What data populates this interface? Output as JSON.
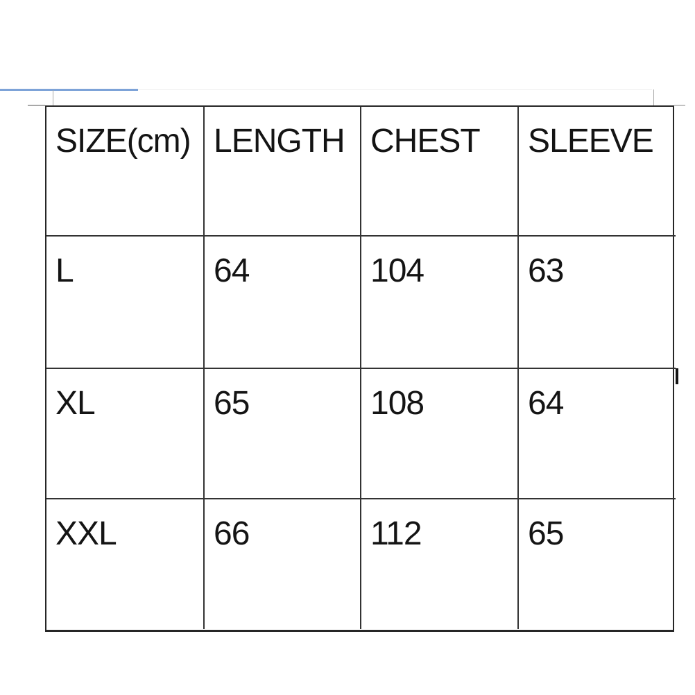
{
  "chart_data": {
    "type": "table",
    "units": "cm",
    "columns": [
      "SIZE(cm)",
      "LENGTH",
      "CHEST",
      "SLEEVE"
    ],
    "rows": [
      [
        "L",
        "64",
        "104",
        "63"
      ],
      [
        "XL",
        "65",
        "108",
        "64"
      ],
      [
        "XXL",
        "66",
        "112",
        "65"
      ]
    ]
  },
  "decorations": {
    "blue_line_color": "#7da3d8",
    "gray_line_color": "#a8a8a8",
    "table_border_color": "#262626",
    "text_color": "#141414",
    "background_color": "#ffffff"
  }
}
